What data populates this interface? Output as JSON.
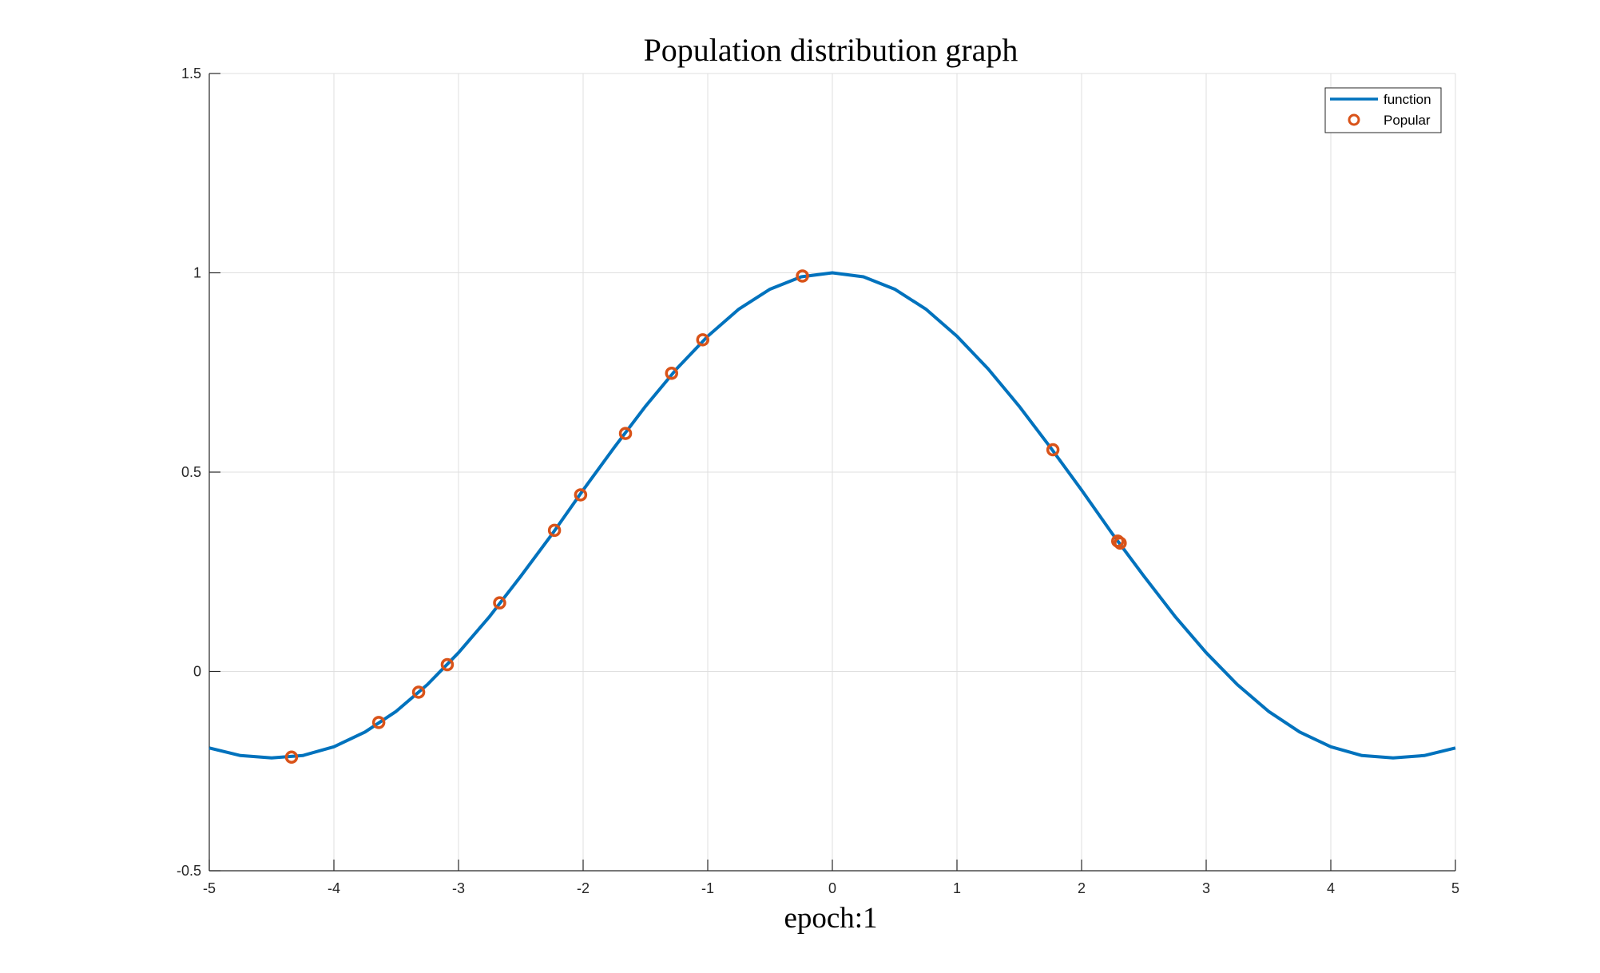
{
  "chart_data": {
    "type": "line",
    "title": "Population distribution graph",
    "xlabel": "epoch:1",
    "ylabel": "",
    "xlim": [
      -5,
      5
    ],
    "ylim": [
      -0.5,
      1.5
    ],
    "xticks": [
      -5,
      -4,
      -3,
      -2,
      -1,
      0,
      1,
      2,
      3,
      4,
      5
    ],
    "yticks": [
      -0.5,
      0,
      0.5,
      1,
      1.5
    ],
    "xtick_labels": [
      "-5",
      "-4",
      "-3",
      "-2",
      "-1",
      "0",
      "1",
      "2",
      "3",
      "4",
      "5"
    ],
    "ytick_labels": [
      "-0.5",
      "0",
      "0.5",
      "1",
      "1.5"
    ],
    "grid": true,
    "legend_position": "top-right",
    "series": [
      {
        "name": "function",
        "kind": "line",
        "color": "#0072BD",
        "x": [
          -5.0,
          -4.75,
          -4.5,
          -4.25,
          -4.0,
          -3.75,
          -3.5,
          -3.25,
          -3.0,
          -2.75,
          -2.5,
          -2.25,
          -2.0,
          -1.75,
          -1.5,
          -1.25,
          -1.0,
          -0.75,
          -0.5,
          -0.25,
          0.0,
          0.25,
          0.5,
          0.75,
          1.0,
          1.25,
          1.5,
          1.75,
          2.0,
          2.25,
          2.5,
          2.75,
          3.0,
          3.25,
          3.5,
          3.75,
          4.0,
          4.25,
          4.5,
          4.75,
          5.0
        ],
        "y": [
          -0.192,
          -0.211,
          -0.217,
          -0.211,
          -0.189,
          -0.152,
          -0.1,
          -0.033,
          0.047,
          0.138,
          0.239,
          0.344,
          0.455,
          0.562,
          0.665,
          0.759,
          0.841,
          0.909,
          0.959,
          0.99,
          1.0,
          0.99,
          0.959,
          0.909,
          0.841,
          0.759,
          0.665,
          0.562,
          0.455,
          0.344,
          0.239,
          0.138,
          0.047,
          -0.033,
          -0.1,
          -0.152,
          -0.189,
          -0.211,
          -0.217,
          -0.211,
          -0.192
        ]
      },
      {
        "name": "Popular",
        "kind": "scatter",
        "color": "#D95319",
        "x": [
          -4.34,
          -3.64,
          -3.32,
          -3.09,
          -2.67,
          -2.23,
          -2.02,
          -1.66,
          -1.29,
          -1.04,
          -0.24,
          1.77,
          2.29,
          2.31
        ],
        "y": [
          -0.215,
          -0.128,
          -0.052,
          0.017,
          0.172,
          0.354,
          0.443,
          0.597,
          0.748,
          0.832,
          0.992,
          0.556,
          0.327,
          0.322
        ]
      }
    ]
  }
}
